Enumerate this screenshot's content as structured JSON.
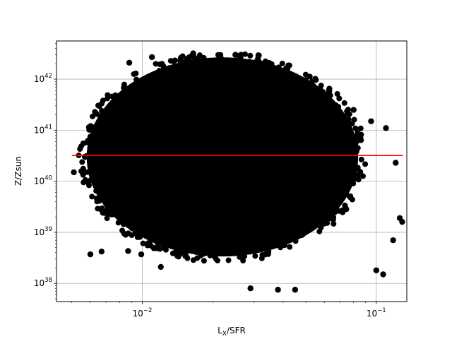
{
  "chart_data": {
    "type": "scatter",
    "title": "",
    "xlabel": "L",
    "xlabel_sub": "X",
    "xlabel_suffix": "/SFR",
    "ylabel": "Z/Zsun",
    "x_scale": "log",
    "y_scale": "log",
    "xlim": [
      0.0043,
      0.135
    ],
    "ylim": [
      4.4e+37,
      5.6e+42
    ],
    "x_ticks": [
      {
        "value": 0.01,
        "base": "10",
        "exp": "−2"
      },
      {
        "value": 0.1,
        "base": "10",
        "exp": "−1"
      }
    ],
    "y_ticks": [
      {
        "value": 1e+38,
        "base": "10",
        "exp": "38"
      },
      {
        "value": 1e+39,
        "base": "10",
        "exp": "39"
      },
      {
        "value": 1e+40,
        "base": "10",
        "exp": "40"
      },
      {
        "value": 1e+41,
        "base": "10",
        "exp": "41"
      },
      {
        "value": 1e+42,
        "base": "10",
        "exp": "42"
      }
    ],
    "grid": true,
    "legend": "none",
    "scatter_cloud": {
      "x_center": 0.022,
      "y_center": 3e+40,
      "log10_x_halfwidth": 0.58,
      "log10_y_halfwidth": 1.95,
      "color": "#000000"
    },
    "outlier_points": [
      {
        "x": 0.0051,
        "y": 1.5e+40
      },
      {
        "x": 0.0056,
        "y": 5.5e+40
      },
      {
        "x": 0.006,
        "y": 3.7e+38
      },
      {
        "x": 0.0067,
        "y": 4.2e+38
      },
      {
        "x": 0.0088,
        "y": 2.1e+42
      },
      {
        "x": 0.011,
        "y": 2.7e+42
      },
      {
        "x": 0.0145,
        "y": 2.3e+42
      },
      {
        "x": 0.0165,
        "y": 3.2e+42
      },
      {
        "x": 0.0183,
        "y": 2.6e+42
      },
      {
        "x": 0.025,
        "y": 3e+42
      },
      {
        "x": 0.0455,
        "y": 6e+41
      },
      {
        "x": 0.063,
        "y": 6.5e+41
      },
      {
        "x": 0.08,
        "y": 2.5e+41
      },
      {
        "x": 0.095,
        "y": 1.5e+41
      },
      {
        "x": 0.11,
        "y": 1.1e+41
      },
      {
        "x": 0.121,
        "y": 2.3e+40
      },
      {
        "x": 0.129,
        "y": 1.6e+39
      },
      {
        "x": 0.126,
        "y": 1.9e+39
      },
      {
        "x": 0.118,
        "y": 7e+38
      },
      {
        "x": 0.107,
        "y": 1.5e+38
      },
      {
        "x": 0.1,
        "y": 1.8e+38
      },
      {
        "x": 0.045,
        "y": 7.5e+37
      },
      {
        "x": 0.038,
        "y": 7.5e+37
      },
      {
        "x": 0.029,
        "y": 8e+37
      },
      {
        "x": 0.012,
        "y": 2.1e+38
      },
      {
        "x": 0.0087,
        "y": 4.3e+38
      },
      {
        "x": 0.0099,
        "y": 3.7e+38
      }
    ],
    "reference_line": {
      "x_start": 0.005,
      "x_end": 0.13,
      "y": 3.2e+40,
      "color": "#ff0000"
    }
  }
}
